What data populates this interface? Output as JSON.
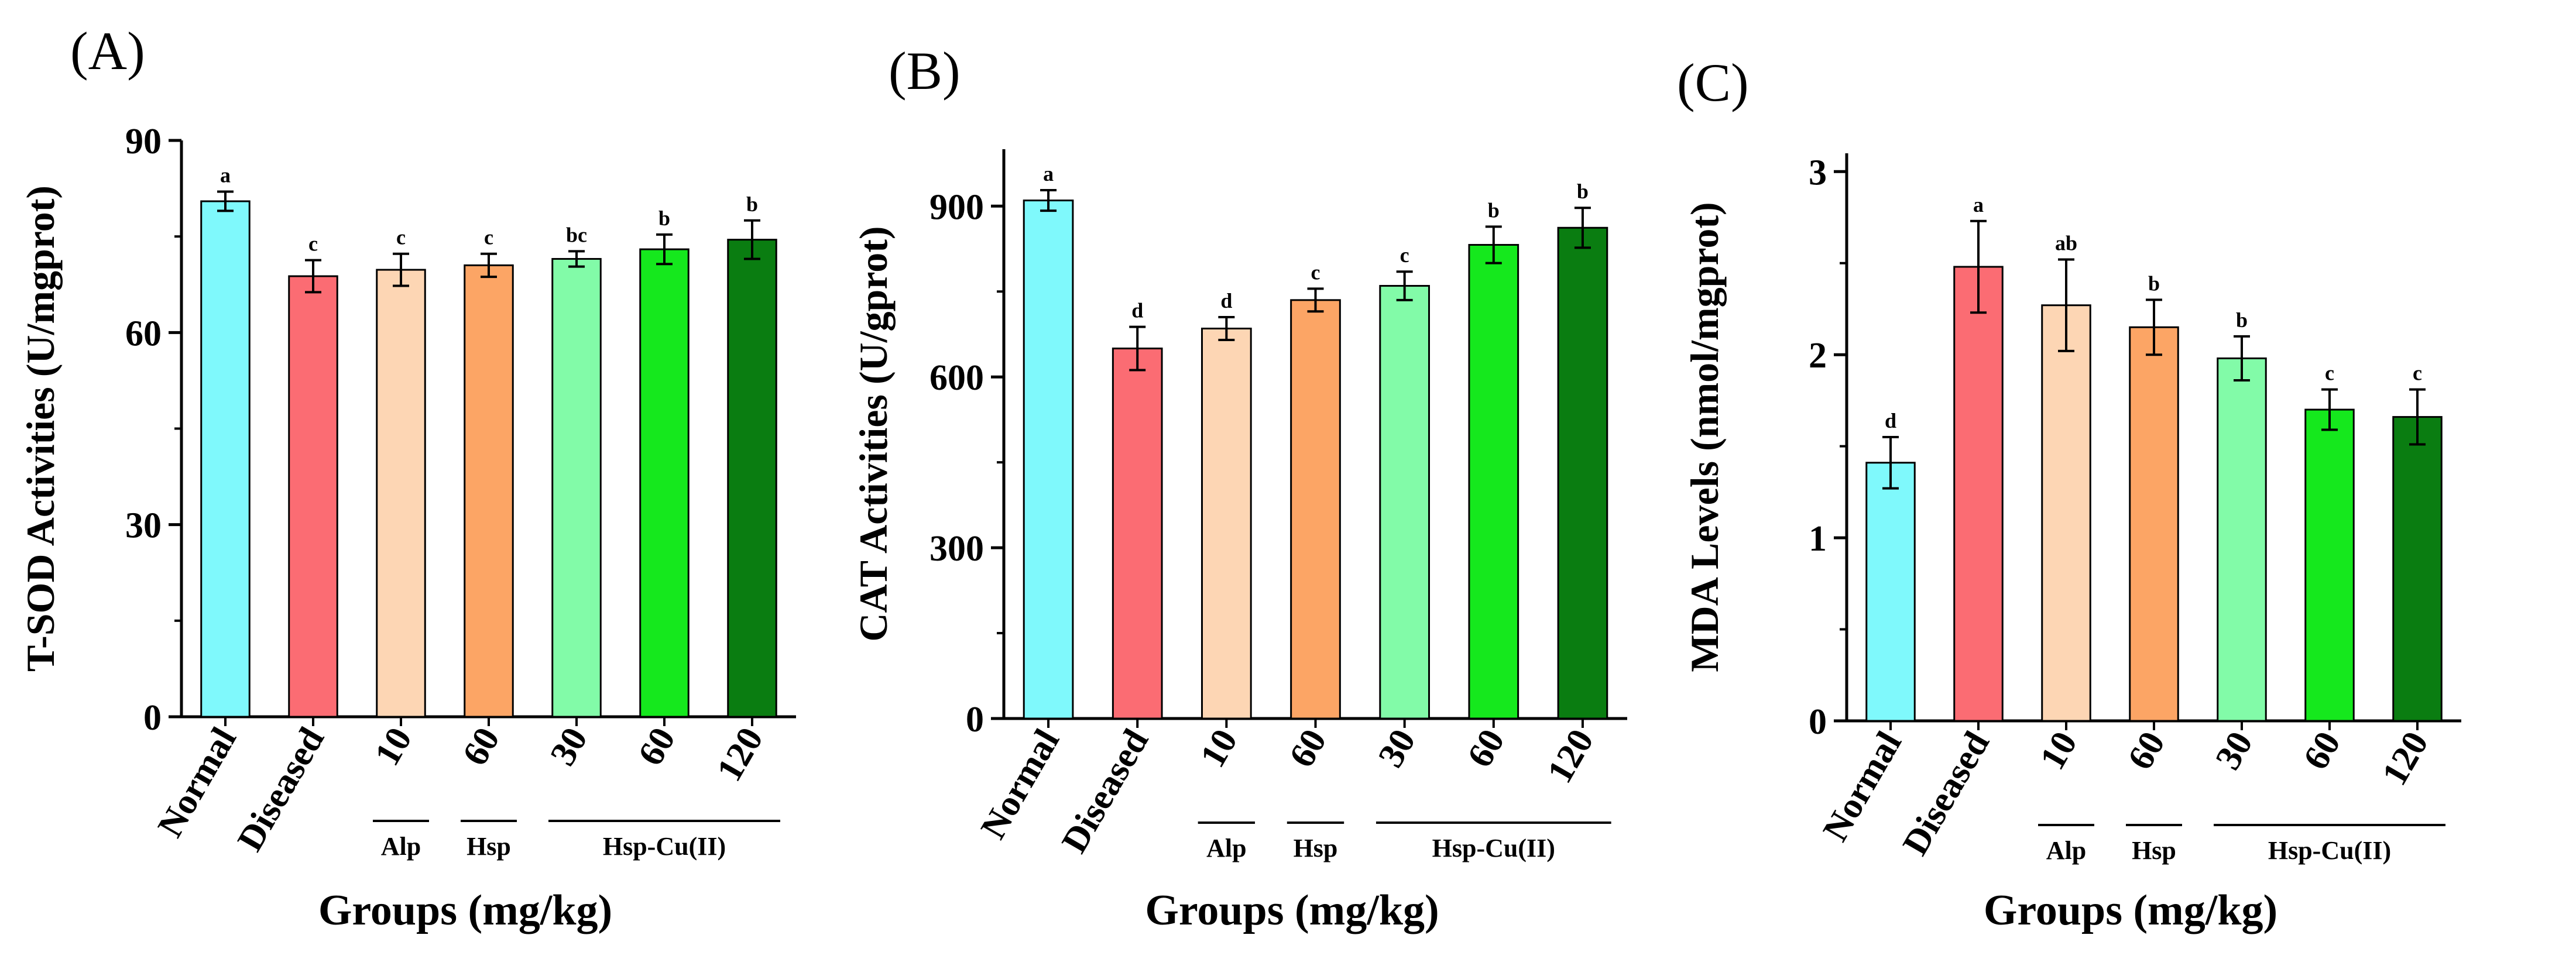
{
  "groups_label": "Groups (mg/kg)",
  "categories": [
    "Normal",
    "Diseased",
    "10",
    "60",
    "30",
    "60",
    "120"
  ],
  "bar_colors": [
    "#7ff9fc",
    "#fb6c73",
    "#fdd6b4",
    "#fca565",
    "#82fba8",
    "#15e81d",
    "#0a7d11"
  ],
  "group_brackets": [
    {
      "label": "Alp",
      "from": 2,
      "to": 2
    },
    {
      "label": "Hsp",
      "from": 3,
      "to": 3
    },
    {
      "label": "Hsp-Cu(II)",
      "from": 4,
      "to": 6
    }
  ],
  "chart_data": [
    {
      "type": "bar",
      "tag": "(A)",
      "ylabel": "T-SOD Activities (U/mgprot)",
      "xlabel": "Groups (mg/kg)",
      "ylim": [
        0,
        90
      ],
      "yticks": [
        0,
        30,
        60,
        90
      ],
      "categories": [
        "Normal",
        "Diseased",
        "10",
        "60",
        "30",
        "60",
        "120"
      ],
      "values": [
        80.5,
        68.8,
        69.8,
        70.5,
        71.5,
        73.0,
        74.5
      ],
      "errors": [
        1.5,
        2.5,
        2.5,
        1.8,
        1.2,
        2.3,
        3.0
      ],
      "significance": [
        "a",
        "c",
        "c",
        "c",
        "bc",
        "b",
        "b"
      ]
    },
    {
      "type": "bar",
      "tag": "(B)",
      "ylabel": "CAT Activities (U/gprot)",
      "xlabel": "Groups (mg/kg)",
      "ylim": [
        0,
        1000
      ],
      "yticks": [
        0,
        300,
        600,
        900
      ],
      "categories": [
        "Normal",
        "Diseased",
        "10",
        "60",
        "30",
        "60",
        "120"
      ],
      "values": [
        910,
        650,
        685,
        735,
        760,
        832,
        862
      ],
      "errors": [
        18,
        38,
        20,
        20,
        25,
        32,
        35
      ],
      "significance": [
        "a",
        "d",
        "d",
        "c",
        "c",
        "b",
        "b"
      ]
    },
    {
      "type": "bar",
      "tag": "(C)",
      "ylabel": "MDA Levels (nmol/mgprot)",
      "xlabel": "Groups (mg/kg)",
      "ylim": [
        0,
        3.1
      ],
      "yticks": [
        0,
        1,
        2,
        3
      ],
      "categories": [
        "Normal",
        "Diseased",
        "10",
        "60",
        "30",
        "60",
        "120"
      ],
      "values": [
        1.41,
        2.48,
        2.27,
        2.15,
        1.98,
        1.7,
        1.66
      ],
      "errors": [
        0.14,
        0.25,
        0.25,
        0.15,
        0.12,
        0.11,
        0.15
      ],
      "significance": [
        "d",
        "a",
        "ab",
        "b",
        "b",
        "c",
        "c"
      ]
    }
  ]
}
